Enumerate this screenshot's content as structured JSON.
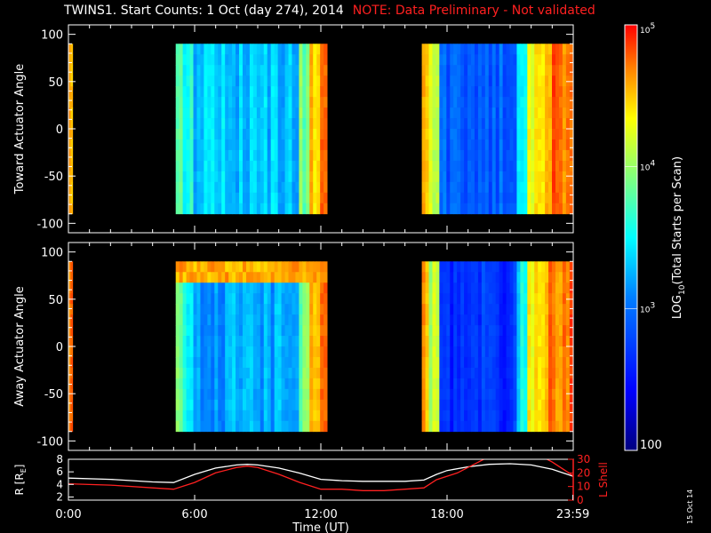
{
  "title": {
    "main": "TWINS1. Start Counts:  1 Oct (day 274), 2014",
    "warning": "NOTE: Data Preliminary - Not validated"
  },
  "stamp": "15 Oct 14",
  "chart_data": [
    {
      "type": "heatmap",
      "name": "toward",
      "ylabel": "Toward Actuator Angle",
      "xlim": [
        0,
        24
      ],
      "ylim": [
        -110,
        110
      ],
      "yticks": [
        -100,
        -50,
        0,
        50,
        100
      ],
      "ytick_labels": [
        "-100",
        "-50",
        "0",
        "50",
        "100"
      ],
      "y_coverage": [
        -90,
        90
      ],
      "data_intervals_hours": [
        [
          0,
          0.2
        ],
        [
          5.1,
          12.3
        ],
        [
          16.8,
          23.99
        ]
      ]
    },
    {
      "type": "heatmap",
      "name": "away",
      "ylabel": "Away Actuator Angle",
      "xlim": [
        0,
        24
      ],
      "ylim": [
        -110,
        110
      ],
      "yticks": [
        -100,
        -50,
        0,
        50,
        100
      ],
      "ytick_labels": [
        "-100",
        "-50",
        "0",
        "50",
        "100"
      ],
      "y_coverage": [
        -90,
        90
      ],
      "data_intervals_hours": [
        [
          0,
          0.2
        ],
        [
          5.1,
          12.3
        ],
        [
          16.8,
          23.99
        ]
      ]
    },
    {
      "type": "line",
      "name": "orbit",
      "xlabel": "Time (UT)",
      "xticks": [
        0,
        6,
        12,
        18,
        23.983
      ],
      "xtick_labels": [
        "0:00",
        "6:00",
        "12:00",
        "18:00",
        "23:59"
      ],
      "left_axis": {
        "label": "R [R",
        "label_sub": "E",
        "label_end": "]",
        "ylim": [
          1.5,
          8
        ],
        "yticks": [
          2,
          4,
          6,
          8
        ],
        "ytick_labels": [
          "2",
          "4",
          "6",
          "8"
        ],
        "color": "#ffffff"
      },
      "right_axis": {
        "label": "L Shell",
        "ylim": [
          0,
          30
        ],
        "yticks": [
          0,
          10,
          20,
          30
        ],
        "ytick_labels": [
          "0",
          "10",
          "20",
          "30"
        ],
        "color": "#ff2020"
      },
      "series": [
        {
          "axis": "left",
          "color": "#ffffff",
          "x": [
            0,
            2,
            4,
            5,
            6,
            7,
            8,
            8.5,
            9,
            10,
            11,
            12,
            13,
            14,
            15,
            16,
            16.9,
            17.5,
            18,
            19,
            20,
            21,
            22,
            23,
            23.99
          ],
          "y": [
            5.0,
            4.8,
            4.4,
            4.3,
            5.6,
            6.6,
            7.1,
            7.2,
            7.1,
            6.6,
            5.8,
            4.8,
            4.6,
            4.5,
            4.5,
            4.5,
            4.7,
            5.6,
            6.2,
            6.8,
            7.2,
            7.3,
            7.1,
            6.4,
            5.3
          ]
        },
        {
          "axis": "right",
          "color": "#ff2020",
          "x": [
            0,
            2,
            4,
            5,
            6,
            7,
            8,
            8.5,
            9,
            10,
            11,
            12,
            13,
            14,
            15,
            16,
            16.9,
            17.5,
            18.5,
            19.5,
            20,
            22.5,
            23,
            23.99
          ],
          "y": [
            12,
            11,
            9,
            8,
            13,
            20,
            24,
            25,
            24,
            19,
            13,
            8,
            8,
            7,
            7,
            8,
            9,
            15,
            20,
            28,
            32,
            32,
            28,
            18
          ]
        }
      ]
    },
    {
      "type": "colorbar",
      "label_prefix": "LOG",
      "label_sub": "10",
      "label_rest": "(Total Starts per Scan)",
      "scale": "log",
      "range": [
        100,
        100000
      ],
      "ticks": [
        100,
        1000,
        10000,
        100000
      ],
      "tick_labels": [
        {
          "base": "100",
          "exp": ""
        },
        {
          "base": "10",
          "exp": "3"
        },
        {
          "base": "10",
          "exp": "4"
        },
        {
          "base": "10",
          "exp": "5"
        }
      ],
      "colormap": [
        "#00007f",
        "#0000ff",
        "#007fff",
        "#00ffff",
        "#7fff7f",
        "#ffff00",
        "#ff7f00",
        "#ff0000"
      ]
    }
  ]
}
